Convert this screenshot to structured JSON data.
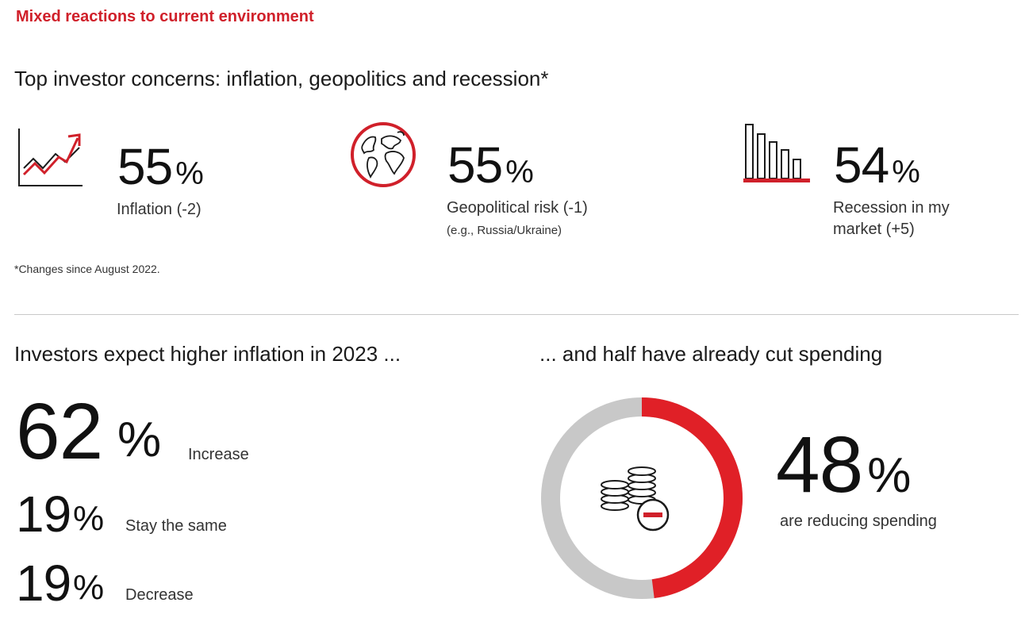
{
  "header": {
    "kicker": "Mixed reactions to current environment"
  },
  "concerns": {
    "title": "Top investor concerns: inflation, geopolitics and recession*",
    "items": [
      {
        "icon": "rising-chart-icon",
        "value": "55",
        "unit": "%",
        "label": "Inflation (-2)",
        "sublabel": ""
      },
      {
        "icon": "globe-icon",
        "value": "55",
        "unit": "%",
        "label": "Geopolitical risk (-1)",
        "sublabel": "(e.g., Russia/Ukraine)"
      },
      {
        "icon": "declining-bars-icon",
        "value": "54",
        "unit": "%",
        "label_line1": "Recession in my",
        "label_line2": "market (+5)"
      }
    ],
    "footnote": "*Changes since August 2022."
  },
  "inflation_expectation": {
    "title": "Investors expect higher inflation in 2023 ...",
    "rows": [
      {
        "value": "62",
        "unit": "%",
        "label": "Increase"
      },
      {
        "value": "19",
        "unit": "%",
        "label": "Stay the same"
      },
      {
        "value": "19",
        "unit": "%",
        "label": "Decrease"
      }
    ]
  },
  "spending": {
    "title": "... and half have already cut spending",
    "value": "48",
    "unit": "%",
    "label": "are reducing spending",
    "fraction": 0.48,
    "colors": {
      "fill": "#e02027",
      "track": "#c8c8c8"
    },
    "icon": "coins-minus-icon"
  },
  "colors": {
    "accent": "#d0202a",
    "text": "#1a1a1a",
    "rule": "#c9c9c9"
  }
}
